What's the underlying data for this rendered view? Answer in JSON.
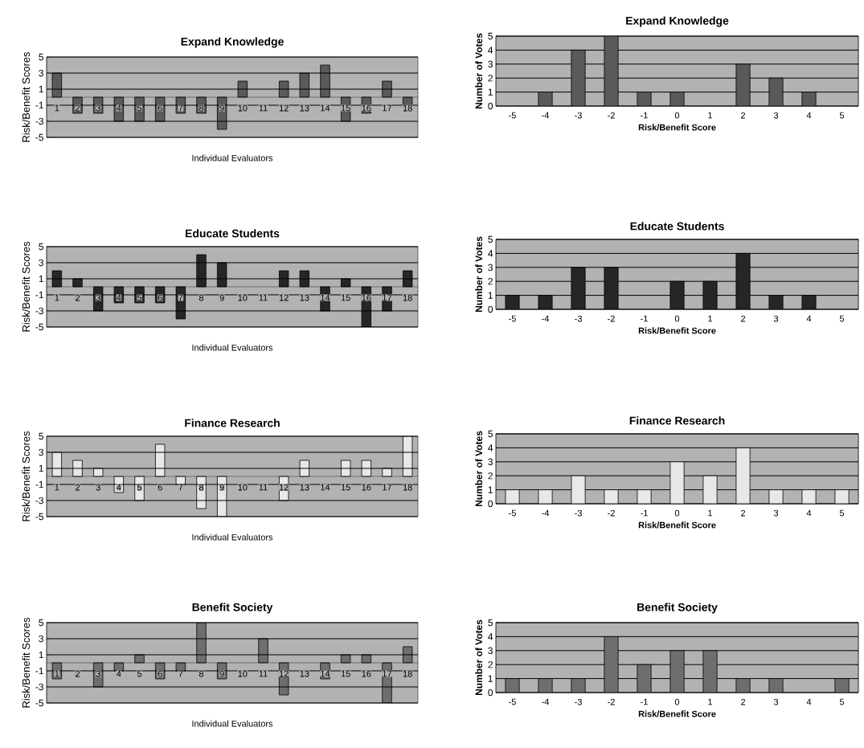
{
  "chart_data": [
    {
      "type": "bar",
      "title": "Expand Knowledge",
      "xlabel": "Individual Evaluators",
      "ylabel": "Risk/Benefit Scores",
      "categories": [
        "1",
        "2",
        "3",
        "4",
        "5",
        "6",
        "7",
        "8",
        "9",
        "10",
        "11",
        "12",
        "13",
        "14",
        "15",
        "16",
        "17",
        "18"
      ],
      "values": [
        3,
        -2,
        -2,
        -3,
        -3,
        -3,
        -2,
        -2,
        -4,
        2,
        0,
        2,
        3,
        4,
        -3,
        -2,
        2,
        -1
      ],
      "color": "#5a5a5a",
      "ylim": [
        -5,
        5
      ],
      "yticks": [
        -5,
        -3,
        -1,
        1,
        3,
        5
      ],
      "grid": "y"
    },
    {
      "type": "bar",
      "title": "Expand Knowledge",
      "xlabel": "Risk/Benefit Score",
      "ylabel": "Number of Votes",
      "categories": [
        "-5",
        "-4",
        "-3",
        "-2",
        "-1",
        "0",
        "1",
        "2",
        "3",
        "4",
        "5"
      ],
      "values": [
        0,
        1,
        4,
        5,
        1,
        1,
        0,
        3,
        2,
        1,
        0
      ],
      "color": "#5a5a5a",
      "ylim": [
        0,
        5
      ],
      "yticks": [
        0,
        1,
        2,
        3,
        4,
        5
      ],
      "grid": "y"
    },
    {
      "type": "bar",
      "title": "Educate Students",
      "xlabel": "Individual Evaluators",
      "ylabel": "Risk/Benefit Scores",
      "categories": [
        "1",
        "2",
        "3",
        "4",
        "5",
        "6",
        "7",
        "8",
        "9",
        "10",
        "11",
        "12",
        "13",
        "14",
        "15",
        "16",
        "17",
        "18"
      ],
      "values": [
        2,
        1,
        -3,
        -2,
        -2,
        -2,
        -4,
        4,
        3,
        0,
        0,
        2,
        2,
        -3,
        1,
        -5,
        -3,
        2
      ],
      "color": "#262626",
      "ylim": [
        -5,
        5
      ],
      "yticks": [
        -5,
        -3,
        -1,
        1,
        3,
        5
      ],
      "grid": "y"
    },
    {
      "type": "bar",
      "title": "Educate Students",
      "xlabel": "Risk/Benefit Score",
      "ylabel": "Number of Votes",
      "categories": [
        "-5",
        "-4",
        "-3",
        "-2",
        "-1",
        "0",
        "1",
        "2",
        "3",
        "4",
        "5"
      ],
      "values": [
        1,
        1,
        3,
        3,
        0,
        2,
        2,
        4,
        1,
        1,
        0
      ],
      "color": "#262626",
      "ylim": [
        0,
        5
      ],
      "yticks": [
        0,
        1,
        2,
        3,
        4,
        5
      ],
      "grid": "y"
    },
    {
      "type": "bar",
      "title": "Finance Research",
      "xlabel": "Individual Evaluators",
      "ylabel": "Risk/Benefit Scores",
      "categories": [
        "1",
        "2",
        "3",
        "4",
        "5",
        "6",
        "7",
        "8",
        "9",
        "10",
        "11",
        "12",
        "13",
        "14",
        "15",
        "16",
        "17",
        "18"
      ],
      "values": [
        3,
        2,
        1,
        -2,
        -3,
        4,
        -1,
        -4,
        -5,
        0,
        0,
        -3,
        2,
        0,
        2,
        2,
        1,
        5
      ],
      "color": "#e8e8e8",
      "ylim": [
        -5,
        5
      ],
      "yticks": [
        -5,
        -3,
        -1,
        1,
        3,
        5
      ],
      "grid": "y"
    },
    {
      "type": "bar",
      "title": "Finance Research",
      "xlabel": "Risk/Benefit Score",
      "ylabel": "Number of Votes",
      "categories": [
        "-5",
        "-4",
        "-3",
        "-2",
        "-1",
        "0",
        "1",
        "2",
        "3",
        "4",
        "5"
      ],
      "values": [
        1,
        1,
        2,
        1,
        1,
        3,
        2,
        4,
        1,
        1,
        1
      ],
      "color": "#e8e8e8",
      "ylim": [
        0,
        5
      ],
      "yticks": [
        0,
        1,
        2,
        3,
        4,
        5
      ],
      "grid": "y"
    },
    {
      "type": "bar",
      "title": "Benefit Society",
      "xlabel": "Individual Evaluators",
      "ylabel": "Risk/Benefit Scores",
      "categories": [
        "1",
        "2",
        "3",
        "4",
        "5",
        "6",
        "7",
        "8",
        "9",
        "10",
        "11",
        "12",
        "13",
        "14",
        "15",
        "16",
        "17",
        "18"
      ],
      "values": [
        -2,
        0,
        -3,
        -1,
        1,
        -2,
        -1,
        5,
        -2,
        0,
        3,
        -4,
        0,
        -2,
        1,
        1,
        -5,
        2
      ],
      "color": "#6e6e6e",
      "ylim": [
        -5,
        5
      ],
      "yticks": [
        -5,
        -3,
        -1,
        1,
        3,
        5
      ],
      "grid": "y"
    },
    {
      "type": "bar",
      "title": "Benefit Society",
      "xlabel": "Risk/Benefit Score",
      "ylabel": "Number of Votes",
      "categories": [
        "-5",
        "-4",
        "-3",
        "-2",
        "-1",
        "0",
        "1",
        "2",
        "3",
        "4",
        "5"
      ],
      "values": [
        1,
        1,
        1,
        4,
        2,
        3,
        3,
        1,
        1,
        0,
        1
      ],
      "color": "#6e6e6e",
      "ylim": [
        0,
        5
      ],
      "yticks": [
        0,
        1,
        2,
        3,
        4,
        5
      ],
      "grid": "y"
    }
  ]
}
